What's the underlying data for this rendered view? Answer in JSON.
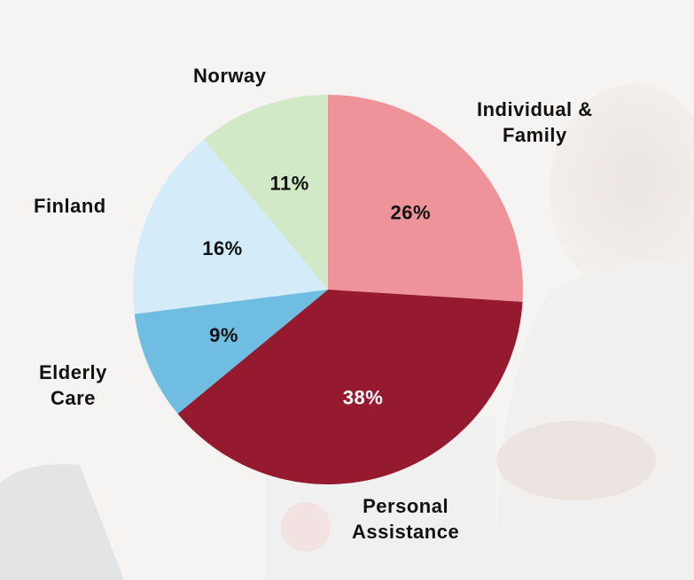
{
  "chart_data": {
    "type": "pie",
    "start_angle_deg": 0,
    "direction": "clockwise",
    "slices": [
      {
        "label": "Individual & Family",
        "value": 26,
        "value_label": "26%",
        "color": "#ef939b",
        "text_color": "#111111"
      },
      {
        "label": "Personal Assistance",
        "value": 38,
        "value_label": "38%",
        "color": "#961a2f",
        "text_color": "#ffffff"
      },
      {
        "label": "Elderly Care",
        "value": 9,
        "value_label": "9%",
        "color": "#6fbde0",
        "text_color": "#111111"
      },
      {
        "label": "Finland",
        "value": 16,
        "value_label": "16%",
        "color": "#d4ecf9",
        "text_color": "#111111"
      },
      {
        "label": "Norway",
        "value": 11,
        "value_label": "11%",
        "color": "#d1e9c6",
        "text_color": "#111111"
      }
    ]
  },
  "labels": {
    "individual_line1": "Individual &",
    "individual_line2": "Family",
    "personal_line1": "Personal",
    "personal_line2": "Assistance",
    "elderly_line1": "Elderly",
    "elderly_line2": "Care",
    "finland": "Finland",
    "norway": "Norway"
  }
}
